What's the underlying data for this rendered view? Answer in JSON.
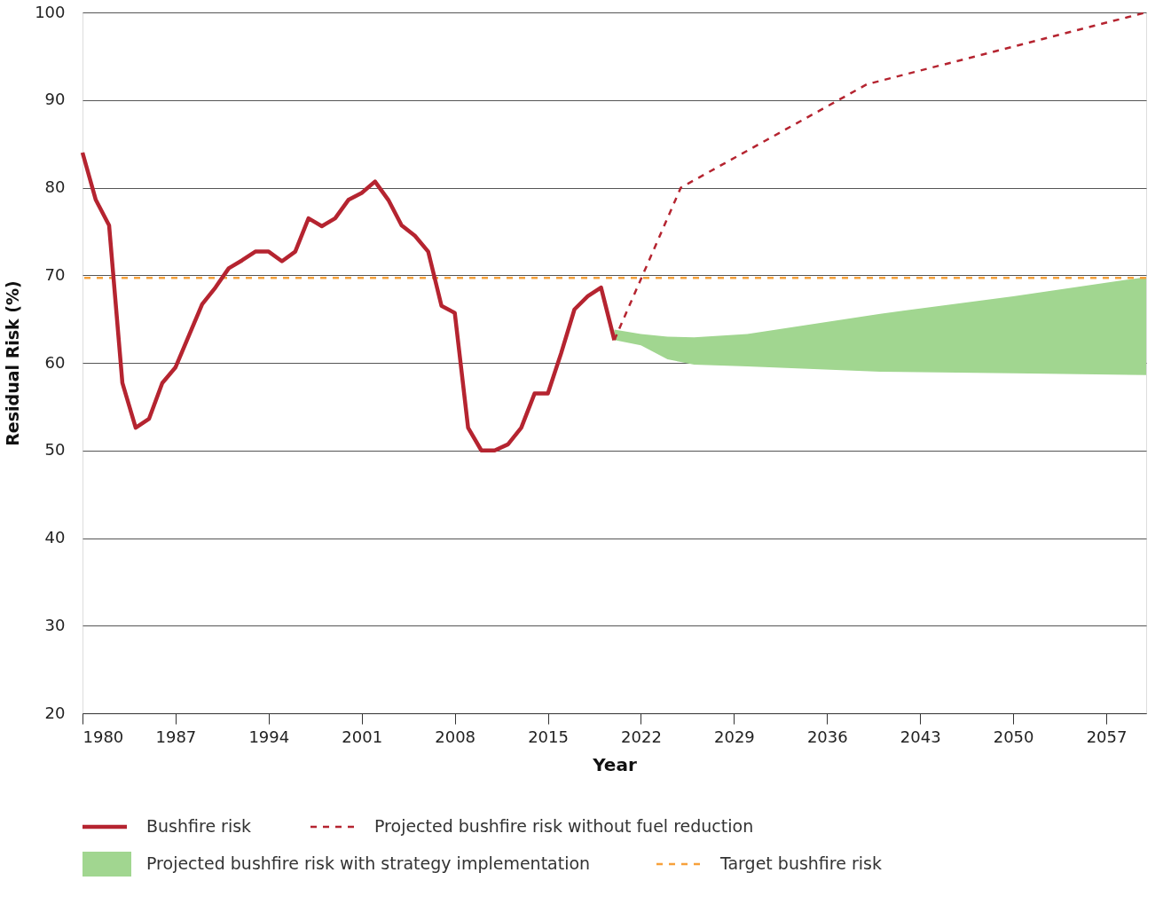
{
  "chart_data": {
    "type": "line",
    "xlabel": "Year",
    "ylabel": "Residual Risk (%)",
    "xlim": [
      1980,
      2060
    ],
    "ylim": [
      20,
      100
    ],
    "xticks": [
      1980,
      1987,
      1994,
      2001,
      2008,
      2015,
      2022,
      2029,
      2036,
      2043,
      2050,
      2057
    ],
    "yticks": [
      20,
      30,
      40,
      50,
      60,
      70,
      80,
      90,
      100
    ],
    "grid": "y",
    "legend": "bottom",
    "series": [
      {
        "name": "Bushfire risk",
        "line_style": "solid",
        "color": "#b52430",
        "x": [
          1980,
          1981,
          1982,
          1983,
          1984,
          1985,
          1986,
          1987,
          1988,
          1989,
          1990,
          1991,
          1992,
          1993,
          1994,
          1995,
          1996,
          1997,
          1998,
          1999,
          2000,
          2001,
          2002,
          2003,
          2004,
          2005,
          2006,
          2007,
          2008,
          2009,
          2010,
          2011,
          2012,
          2013,
          2014,
          2015,
          2016,
          2017,
          2018,
          2019,
          2020
        ],
        "values": [
          84.0,
          78.6,
          75.7,
          57.7,
          52.6,
          53.6,
          57.7,
          59.5,
          63.1,
          66.7,
          68.6,
          70.8,
          71.7,
          72.7,
          72.7,
          71.6,
          72.7,
          76.5,
          75.6,
          76.5,
          78.6,
          79.4,
          80.7,
          78.6,
          75.7,
          74.5,
          72.7,
          66.5,
          65.7,
          52.6,
          50.0,
          50.0,
          50.7,
          52.6,
          56.5,
          56.5,
          61.1,
          66.1,
          67.6,
          68.6,
          62.6
        ]
      },
      {
        "name": "Projected bushfire risk without fuel reduction",
        "type": "line",
        "line_style": "dashed",
        "color": "#b52430",
        "x": [
          2020,
          2025,
          2039,
          2060
        ],
        "values": [
          62.6,
          80.0,
          91.8,
          100.0
        ]
      },
      {
        "name": "Projected bushfire risk with strategy implementation",
        "type": "area",
        "color": "#a1d690",
        "x": [
          2020,
          2022,
          2024,
          2026,
          2030,
          2040,
          2050,
          2060
        ],
        "values": [
          null,
          null,
          null,
          null,
          null,
          null,
          null,
          null
        ],
        "lower": [
          62.6,
          62.0,
          60.4,
          59.8,
          59.6,
          59.0,
          58.8,
          58.6
        ],
        "upper": [
          63.8,
          63.3,
          63.0,
          62.9,
          63.3,
          65.6,
          67.6,
          69.8
        ]
      }
    ],
    "ref_lines": [
      {
        "axis": "y",
        "value": 69.7,
        "label": "Target bushfire risk",
        "color": "#f7a13a",
        "line_style": "dashed"
      }
    ]
  }
}
